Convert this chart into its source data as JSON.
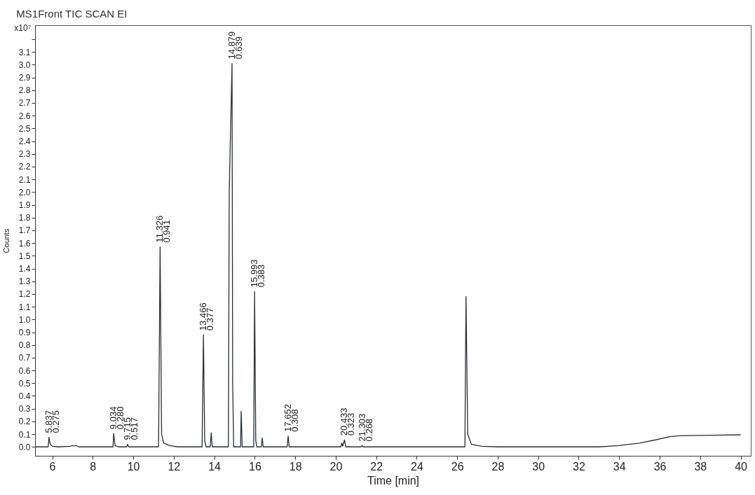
{
  "chart_data": {
    "type": "line",
    "title": "MS1Front TIC SCAN EI",
    "xlabel": "Time [min]",
    "ylabel": "Counts",
    "annotations": [
      "x10⁷",
      {
        "text": "5.837\n0.275",
        "x": 5.837,
        "y": 0.075
      },
      {
        "text": "9.034\n0.280",
        "x": 9.034,
        "y": 0.105
      },
      {
        "text": "9.715\n0.517",
        "x": 9.715,
        "y": 0.02
      },
      {
        "text": "11.326\n0.941",
        "x": 11.326,
        "y": 1.57
      },
      {
        "text": "13.466\n0.377",
        "x": 13.466,
        "y": 0.88
      },
      {
        "text": "14.879\n0.639",
        "x": 14.879,
        "y": 3.01
      },
      {
        "text": "15.993\n0.383",
        "x": 15.993,
        "y": 1.22
      },
      {
        "text": "17.652\n0.308",
        "x": 17.652,
        "y": 0.085
      },
      {
        "text": "20.433\n0.323",
        "x": 20.433,
        "y": 0.055
      },
      {
        "text": "21.303\n0.268",
        "x": 21.303,
        "y": 0.01
      }
    ],
    "series": [
      {
        "color": "#2b2f33",
        "x": [
          5.15,
          5.8,
          5.837,
          5.9,
          6.0,
          6.3,
          6.9,
          7.0,
          7.1,
          7.2,
          7.3,
          9.0,
          9.034,
          9.1,
          9.3,
          9.68,
          9.715,
          9.78,
          11.25,
          11.326,
          11.4,
          11.5,
          11.8,
          12.2,
          13.4,
          13.466,
          13.53,
          13.6,
          13.8,
          13.85,
          13.9,
          14.7,
          14.74,
          14.879,
          14.91,
          14.96,
          15.3,
          15.33,
          15.38,
          15.95,
          15.993,
          16.05,
          16.1,
          16.33,
          16.37,
          16.42,
          17.6,
          17.652,
          17.7,
          20.25,
          20.3,
          20.35,
          20.433,
          20.5,
          21.25,
          21.303,
          21.35,
          26.38,
          26.434,
          26.52,
          26.7,
          27.2,
          28,
          33,
          34,
          35,
          35.8,
          36.5,
          37,
          38,
          40
        ],
        "values": [
          0,
          0,
          0.075,
          0.02,
          0.005,
          0,
          0.005,
          0.01,
          0.008,
          0.01,
          0,
          0,
          0.105,
          0.01,
          0,
          0,
          0.02,
          0,
          0,
          1.57,
          0.1,
          0.03,
          0.01,
          0,
          0,
          0.88,
          0.05,
          0,
          0,
          0.11,
          0,
          0,
          2.0,
          3.01,
          0.5,
          0,
          0,
          0.28,
          0,
          0,
          1.22,
          0.05,
          0,
          0,
          0.07,
          0,
          0,
          0.085,
          0,
          0,
          0.03,
          0.005,
          0.055,
          0,
          0,
          0.01,
          0,
          0,
          1.18,
          0.1,
          0.02,
          0.005,
          0,
          0,
          0.01,
          0.03,
          0.055,
          0.08,
          0.087,
          0.09,
          0.095
        ]
      }
    ],
    "xlim": [
      5.15,
      40.5
    ],
    "ylim": [
      -0.07,
      3.31
    ],
    "xticks": [
      6,
      8,
      10,
      12,
      14,
      16,
      18,
      20,
      22,
      24,
      26,
      28,
      30,
      32,
      34,
      36,
      38,
      40
    ],
    "yticks": [
      {
        "value": 0,
        "label": "0.0"
      },
      {
        "value": 0.1,
        "label": "0.1"
      },
      {
        "value": 0.2,
        "label": "0.2"
      },
      {
        "value": 0.3,
        "label": "0.3"
      },
      {
        "value": 0.4,
        "label": "0.4"
      },
      {
        "value": 0.5,
        "label": "0.5"
      },
      {
        "value": 0.6,
        "label": "0.6"
      },
      {
        "value": 0.7,
        "label": "0.7"
      },
      {
        "value": 0.8,
        "label": "0.8"
      },
      {
        "value": 0.9,
        "label": "0.9"
      },
      {
        "value": 1,
        "label": "1.0"
      },
      {
        "value": 1.1,
        "label": "1.1"
      },
      {
        "value": 1.2,
        "label": "1.2"
      },
      {
        "value": 1.3,
        "label": "1.3"
      },
      {
        "value": 1.4,
        "label": "1.4"
      },
      {
        "value": 1.5,
        "label": "1.5"
      },
      {
        "value": 1.6,
        "label": "1.6"
      },
      {
        "value": 1.7,
        "label": "1.7"
      },
      {
        "value": 1.8,
        "label": "1.8"
      },
      {
        "value": 1.9,
        "label": "1.9"
      },
      {
        "value": 2,
        "label": "2.0"
      },
      {
        "value": 2.1,
        "label": "2.1"
      },
      {
        "value": 2.2,
        "label": "2.2"
      },
      {
        "value": 2.3,
        "label": "2.3"
      },
      {
        "value": 2.4,
        "label": "2.4"
      },
      {
        "value": 2.5,
        "label": "2.5"
      },
      {
        "value": 2.6,
        "label": "2.6"
      },
      {
        "value": 2.7,
        "label": "2.7"
      },
      {
        "value": 2.8,
        "label": "2.8"
      },
      {
        "value": 2.9,
        "label": "2.9"
      },
      {
        "value": 3,
        "label": "3.0"
      },
      {
        "value": 3.1,
        "label": "3.1"
      },
      {
        "value": 3.2,
        "label": null
      }
    ],
    "grid": false,
    "marker": "none",
    "line_style": "solid"
  }
}
